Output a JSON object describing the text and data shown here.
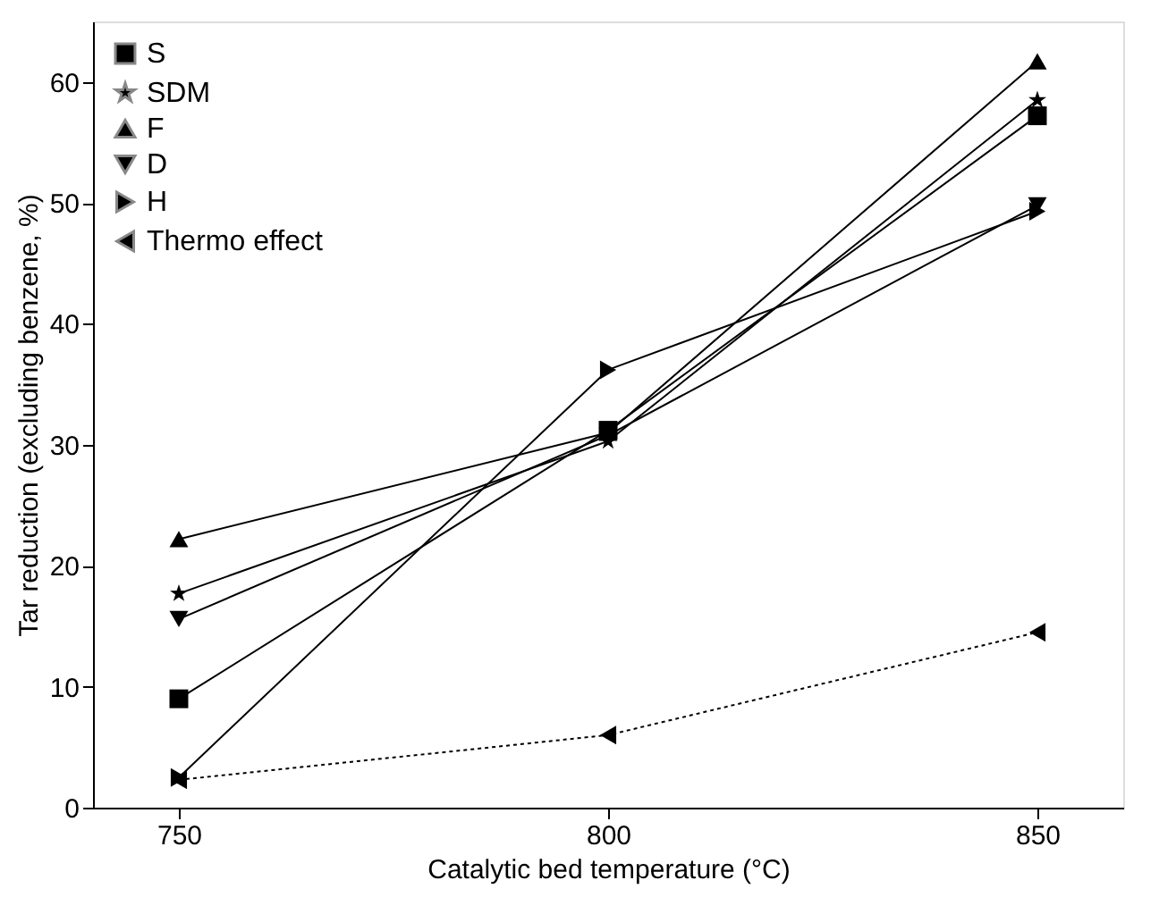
{
  "chart_data": {
    "type": "line",
    "xlabel": "Catalytic bed temperature (°C)",
    "ylabel": "Tar reduction (excluding benzene, %)",
    "x": [
      750,
      800,
      850
    ],
    "xlim": [
      740,
      860
    ],
    "xticks": [
      750,
      800,
      850
    ],
    "ylim": [
      0,
      65
    ],
    "yticks": [
      0,
      10,
      20,
      30,
      40,
      50,
      60
    ],
    "grid": false,
    "legend": "top left",
    "series": [
      {
        "name": "S",
        "color": "#000000",
        "marker": "square",
        "line_style": "solid",
        "values": [
          9.0,
          31.2,
          57.2
        ]
      },
      {
        "name": "SDM",
        "color": "#000000",
        "marker": "star",
        "line_style": "solid",
        "values": [
          17.7,
          30.3,
          58.5
        ]
      },
      {
        "name": "F",
        "color": "#000000",
        "marker": "triangle-up",
        "line_style": "solid",
        "values": [
          22.2,
          31.0,
          61.7
        ]
      },
      {
        "name": "D",
        "color": "#000000",
        "marker": "triangle-down",
        "line_style": "solid",
        "values": [
          15.6,
          30.8,
          49.8
        ]
      },
      {
        "name": "H",
        "color": "#000000",
        "marker": "triangle-right",
        "line_style": "solid",
        "values": [
          2.5,
          36.2,
          49.3
        ]
      },
      {
        "name": "Thermo effect",
        "color": "#000000",
        "marker": "triangle-left",
        "line_style": "dotted",
        "values": [
          2.3,
          6.0,
          14.5
        ]
      }
    ]
  }
}
